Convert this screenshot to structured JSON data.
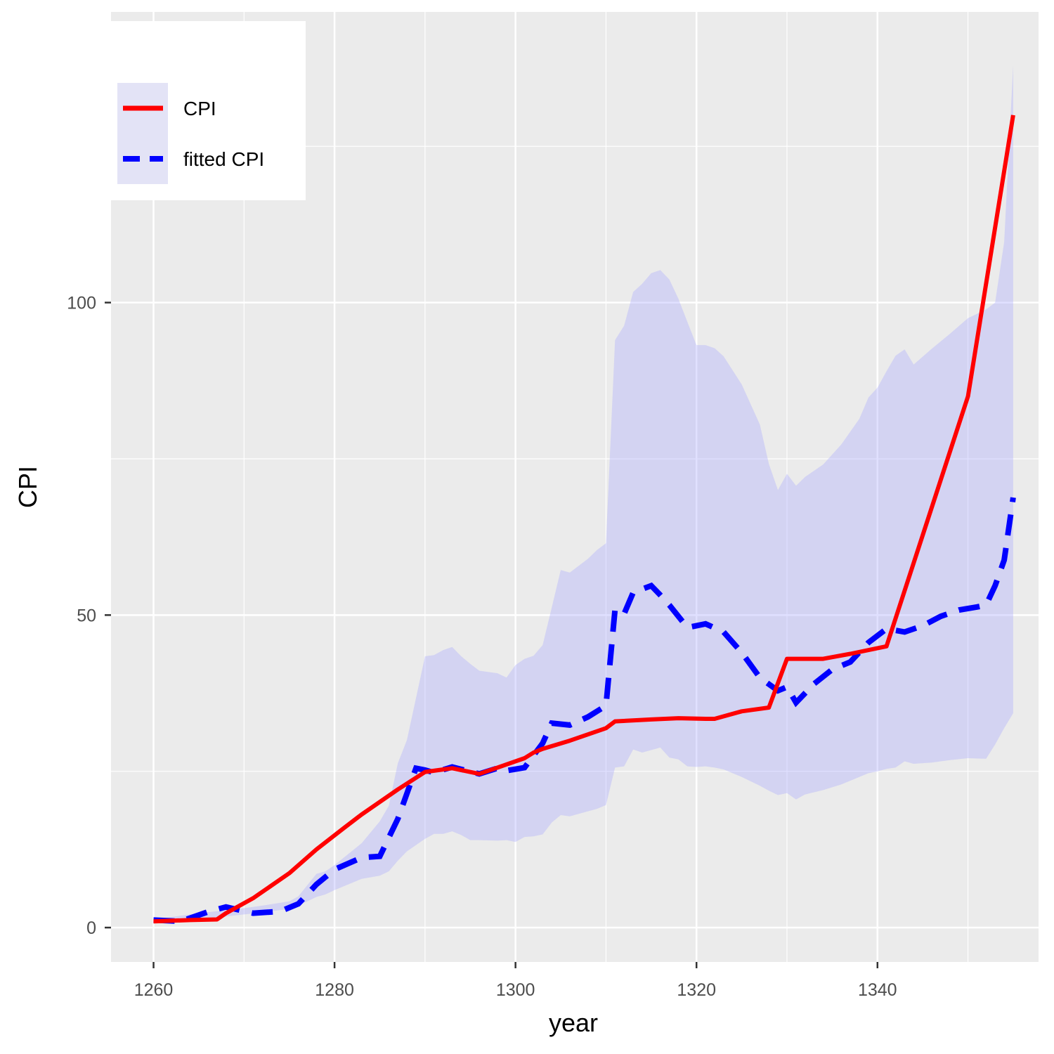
{
  "chart_data": {
    "type": "line",
    "xlabel": "year",
    "ylabel": "CPI",
    "xlim": [
      1255.3,
      1357.8
    ],
    "ylim": [
      -5.5,
      146.5
    ],
    "x_ticks": [
      1260,
      1280,
      1300,
      1320,
      1340
    ],
    "y_ticks": [
      0,
      50,
      100
    ],
    "grid": true,
    "legend_position": "top-left",
    "colors": {
      "panel": "#ebebeb",
      "grid": "#ffffff",
      "cpi": "#ff0000",
      "fitted": "#0000ff",
      "band": "#a6a6ff",
      "tick_mark": "#333333"
    },
    "series": [
      {
        "name": "CPI",
        "style": "solid",
        "x": [
          1260,
          1264,
          1267,
          1268,
          1271,
          1275,
          1278,
          1281,
          1283,
          1287,
          1290,
          1293,
          1296,
          1298,
          1301,
          1302,
          1303,
          1306,
          1310,
          1311,
          1315,
          1318,
          1321,
          1322,
          1325,
          1328,
          1330,
          1334,
          1337,
          1341,
          1350,
          1355
        ],
        "y": [
          1.0,
          1.2,
          1.3,
          2.3,
          4.7,
          8.7,
          12.5,
          15.9,
          18.1,
          22.1,
          24.9,
          25.5,
          24.6,
          25.6,
          27.1,
          28.0,
          28.6,
          29.9,
          31.9,
          33.0,
          33.3,
          33.5,
          33.4,
          33.4,
          34.6,
          35.2,
          43.0,
          43.0,
          43.8,
          45.0,
          85.0,
          130.0
        ]
      },
      {
        "name": "fitted CPI",
        "style": "dashed",
        "x": [
          1260,
          1263,
          1266,
          1268,
          1271,
          1274,
          1276,
          1278,
          1280,
          1283,
          1285,
          1287,
          1289,
          1290,
          1291,
          1293,
          1296,
          1298,
          1299,
          1301,
          1303,
          1304,
          1306,
          1308,
          1310,
          1311,
          1312,
          1313,
          1315,
          1316,
          1317,
          1319,
          1321,
          1323,
          1325,
          1327,
          1329,
          1330,
          1331,
          1333,
          1335,
          1337,
          1339,
          1341,
          1343,
          1345,
          1347,
          1349,
          1351,
          1352,
          1353,
          1354,
          1355
        ],
        "y": [
          1.2,
          1.0,
          2.5,
          3.3,
          2.3,
          2.6,
          3.8,
          6.9,
          9.3,
          11.2,
          11.4,
          17.4,
          25.5,
          25.2,
          24.8,
          25.7,
          24.6,
          25.5,
          25.1,
          25.6,
          29.5,
          32.7,
          32.4,
          33.7,
          35.5,
          50.9,
          50.2,
          53.6,
          54.7,
          53.2,
          51.6,
          48.0,
          48.6,
          47.3,
          44.0,
          40.0,
          37.9,
          38.5,
          36.0,
          39.0,
          41.3,
          42.5,
          45.6,
          47.8,
          47.3,
          48.3,
          49.8,
          50.8,
          51.3,
          51.6,
          54.7,
          58.8,
          68.8
        ]
      },
      {
        "name": "",
        "style": "band",
        "x": [
          1260,
          1265,
          1270,
          1272,
          1275,
          1276,
          1278,
          1279,
          1280,
          1283,
          1285,
          1286,
          1287,
          1288,
          1290,
          1291,
          1292,
          1293,
          1294,
          1295,
          1296,
          1298,
          1299,
          1300,
          1301,
          1302,
          1303,
          1304,
          1305,
          1306,
          1308,
          1309,
          1310,
          1311,
          1312,
          1313,
          1314,
          1315,
          1316,
          1317,
          1318,
          1319,
          1320,
          1321,
          1322,
          1323,
          1325,
          1327,
          1328,
          1329,
          1330,
          1331,
          1332,
          1334,
          1336,
          1338,
          1339,
          1340,
          1341,
          1342,
          1343,
          1344,
          1346,
          1348,
          1350,
          1352,
          1353,
          1354,
          1355
        ],
        "upper": [
          1.3,
          2.3,
          3.1,
          3.5,
          4.2,
          5.0,
          8.6,
          9.0,
          10.0,
          13.5,
          17.0,
          19.5,
          26.3,
          30.0,
          43.4,
          43.6,
          44.4,
          44.9,
          43.4,
          42.2,
          41.1,
          40.7,
          40.0,
          42.0,
          43.0,
          43.5,
          45.2,
          51.2,
          57.2,
          56.8,
          59.0,
          60.4,
          61.5,
          94.0,
          96.3,
          101.7,
          103.0,
          104.7,
          105.2,
          103.7,
          100.6,
          96.9,
          93.2,
          93.2,
          92.7,
          91.4,
          86.9,
          80.5,
          74.2,
          70.0,
          72.6,
          70.7,
          72.1,
          74.1,
          77.3,
          81.4,
          84.8,
          86.4,
          89.0,
          91.5,
          92.5,
          90.1,
          92.6,
          95.0,
          97.5,
          98.9,
          100.0,
          109.7,
          138.0
        ],
        "lower": [
          0.9,
          1.3,
          2.1,
          2.4,
          3.0,
          3.5,
          4.9,
          5.3,
          6.0,
          7.8,
          8.3,
          9.0,
          10.7,
          12.2,
          14.2,
          15.0,
          15.0,
          15.4,
          14.8,
          14.0,
          14.0,
          13.9,
          14.0,
          13.7,
          14.5,
          14.6,
          14.9,
          16.8,
          18.0,
          17.8,
          18.6,
          19.0,
          19.6,
          25.6,
          25.8,
          28.5,
          28.0,
          28.4,
          28.8,
          27.2,
          26.9,
          25.8,
          25.7,
          25.8,
          25.6,
          25.3,
          24.1,
          22.7,
          21.9,
          21.2,
          21.5,
          20.5,
          21.3,
          22.0,
          22.9,
          24.1,
          24.7,
          25.0,
          25.4,
          25.6,
          26.6,
          26.2,
          26.4,
          26.8,
          27.1,
          27.0,
          29.3,
          31.9,
          34.3
        ]
      }
    ]
  }
}
